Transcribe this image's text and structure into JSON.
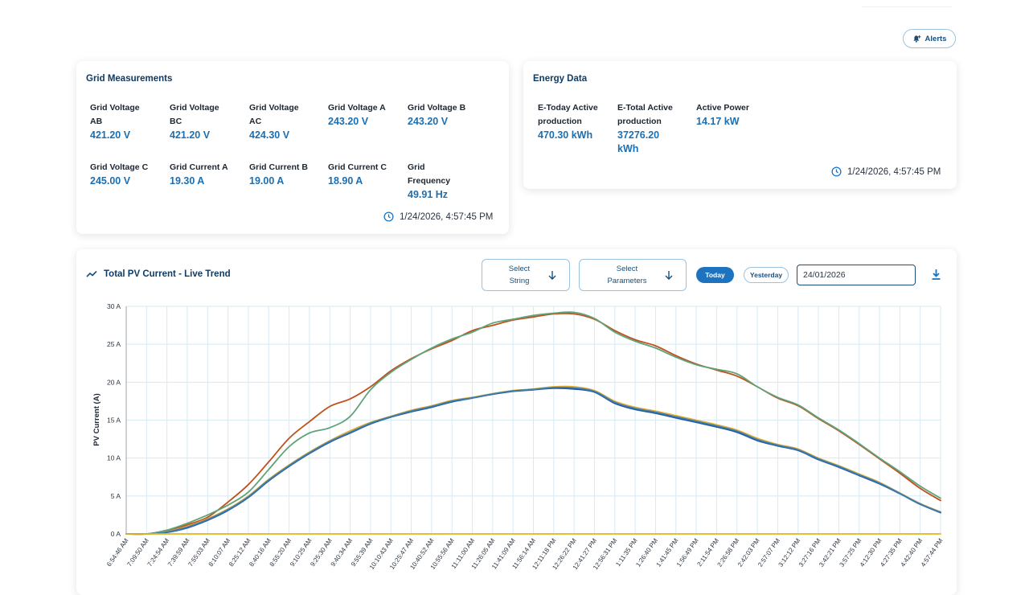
{
  "alerts_label": "Alerts",
  "grid": {
    "title": "Grid Measurements",
    "metrics": [
      {
        "label_lines": [
          "Grid Voltage",
          "AB"
        ],
        "value": "421.20 V"
      },
      {
        "label_lines": [
          "Grid Voltage",
          "BC"
        ],
        "value": "421.20 V"
      },
      {
        "label_lines": [
          "Grid Voltage",
          "AC"
        ],
        "value": "424.30 V"
      },
      {
        "label_lines": [
          "Grid Voltage A"
        ],
        "value": "243.20 V"
      },
      {
        "label_lines": [
          "Grid Voltage B"
        ],
        "value": "243.20 V"
      },
      {
        "label_lines": [
          "Grid Voltage C"
        ],
        "value": "245.00 V"
      },
      {
        "label_lines": [
          "Grid Current A"
        ],
        "value": "19.30 A"
      },
      {
        "label_lines": [
          "Grid Current B"
        ],
        "value": "19.00 A"
      },
      {
        "label_lines": [
          "Grid Current C"
        ],
        "value": "18.90 A"
      },
      {
        "label_lines": [
          "Grid",
          "Frequency"
        ],
        "value": "49.91 Hz"
      }
    ],
    "timestamp": "1/24/2026, 4:57:45 PM"
  },
  "energy": {
    "title": "Energy Data",
    "metrics": [
      {
        "label_lines": [
          "E-Today Active",
          "production"
        ],
        "value_lines": [
          "470.30 kWh"
        ]
      },
      {
        "label_lines": [
          "E-Total Active",
          "production"
        ],
        "value_lines": [
          "37276.20",
          "kWh"
        ]
      },
      {
        "label_lines": [
          "Active Power"
        ],
        "value_lines": [
          "14.17 kW"
        ]
      }
    ],
    "timestamp": "1/24/2026, 4:57:45 PM"
  },
  "trend": {
    "title": "Total PV Current - Live Trend",
    "select_string_lines": [
      "Select",
      "String"
    ],
    "select_parameters_lines": [
      "Select",
      "Parameters"
    ],
    "today_label": "Today",
    "yesterday_label": "Yesterday",
    "date_value": "24/01/2026"
  },
  "colors": {
    "accent": "#1e73be",
    "value_blue": "#1c6fb0",
    "series": [
      "#c0501c",
      "#5fa37a",
      "#e8b23a",
      "#2355a8",
      "#3f7fa8",
      "#e3b51f"
    ]
  },
  "icons": {
    "alerts": "bell-plus-icon",
    "timestamp": "clock-icon",
    "trend": "trend-line-icon",
    "select": "arrow-down-icon",
    "download": "download-icon"
  },
  "chart_data": {
    "type": "line",
    "ylabel": "PV Current (A)",
    "ylim": [
      0,
      30
    ],
    "y_ticks": [
      "0 A",
      "5 A",
      "10 A",
      "15 A",
      "20 A",
      "25 A",
      "30 A"
    ],
    "y_tick_values": [
      0,
      5,
      10,
      15,
      20,
      25,
      30
    ],
    "x_labels": [
      "6:54:46 AM",
      "7:09:50 AM",
      "7:24:54 AM",
      "7:39:59 AM",
      "7:55:03 AM",
      "8:10:07 AM",
      "8:25:12 AM",
      "8:40:16 AM",
      "8:55:20 AM",
      "9:10:25 AM",
      "9:25:30 AM",
      "9:40:34 AM",
      "9:55:39 AM",
      "10:10:43 AM",
      "10:25:47 AM",
      "10:40:52 AM",
      "10:55:56 AM",
      "11:11:00 AM",
      "11:26:05 AM",
      "11:41:09 AM",
      "11:56:14 AM",
      "12:11:18 PM",
      "12:26:22 PM",
      "12:41:27 PM",
      "12:56:31 PM",
      "1:11:35 PM",
      "1:26:40 PM",
      "1:41:45 PM",
      "1:56:49 PM",
      "2:11:54 PM",
      "2:26:58 PM",
      "2:42:03 PM",
      "2:57:07 PM",
      "3:12:12 PM",
      "3:27:16 PM",
      "3:42:21 PM",
      "3:57:25 PM",
      "4:12:30 PM",
      "4:27:35 PM",
      "4:42:40 PM",
      "4:57:44 PM"
    ],
    "grid": true,
    "series": [
      {
        "color": "#c0501c",
        "values": [
          0,
          0,
          0.4,
          1.2,
          2.2,
          4.2,
          6.5,
          9.5,
          12.6,
          14.8,
          16.8,
          17.8,
          19.4,
          21.5,
          23.1,
          24.4,
          25.5,
          26.8,
          27.5,
          28.2,
          28.6,
          29.0,
          29.0,
          28.3,
          26.8,
          25.6,
          24.8,
          23.5,
          22.4,
          21.6,
          20.8,
          19.4,
          17.9,
          16.9,
          15.2,
          13.6,
          11.8,
          9.9,
          8.0,
          6.0,
          4.4
        ]
      },
      {
        "color": "#5fa37a",
        "values": [
          0,
          0,
          0.5,
          1.4,
          2.5,
          3.8,
          5.5,
          8.5,
          11.5,
          13.3,
          14.0,
          15.5,
          19.0,
          21.3,
          23.0,
          24.5,
          25.7,
          26.6,
          27.8,
          28.3,
          28.8,
          29.1,
          29.2,
          28.4,
          26.6,
          25.4,
          24.5,
          23.3,
          22.3,
          21.7,
          21.1,
          19.4,
          18.0,
          17.0,
          15.3,
          13.7,
          11.9,
          10.0,
          8.2,
          6.3,
          4.7
        ]
      },
      {
        "color": "#e8b23a",
        "values": [
          0,
          0,
          0.3,
          1.0,
          2.0,
          3.3,
          5.0,
          7.2,
          9.1,
          10.8,
          12.3,
          13.6,
          14.7,
          15.5,
          16.3,
          16.9,
          17.6,
          18.0,
          18.5,
          18.9,
          19.1,
          19.4,
          19.4,
          18.9,
          17.5,
          16.7,
          16.2,
          15.6,
          15.0,
          14.4,
          13.7,
          12.6,
          11.8,
          11.2,
          10.0,
          9.0,
          7.9,
          6.8,
          5.4,
          4.0,
          2.9
        ]
      },
      {
        "color": "#2355a8",
        "values": [
          0,
          0,
          0.2,
          0.8,
          1.8,
          3.1,
          4.8,
          7.0,
          8.9,
          10.6,
          12.1,
          13.3,
          14.5,
          15.4,
          16.1,
          16.7,
          17.4,
          17.9,
          18.4,
          18.8,
          19.0,
          19.2,
          19.1,
          18.7,
          17.2,
          16.4,
          15.9,
          15.3,
          14.7,
          14.1,
          13.4,
          12.3,
          11.6,
          11.0,
          9.8,
          8.8,
          7.7,
          6.6,
          5.3,
          3.9,
          2.8
        ]
      },
      {
        "color": "#3f7fa8",
        "values": [
          0,
          0,
          0.25,
          0.9,
          1.9,
          3.2,
          4.9,
          7.1,
          9.0,
          10.7,
          12.2,
          13.4,
          14.6,
          15.45,
          16.2,
          16.8,
          17.5,
          17.95,
          18.45,
          18.85,
          19.05,
          19.3,
          19.25,
          18.8,
          17.35,
          16.55,
          16.05,
          15.45,
          14.85,
          14.25,
          13.55,
          12.45,
          11.7,
          11.1,
          9.9,
          8.9,
          7.8,
          6.7,
          5.35,
          3.95,
          2.85
        ]
      },
      {
        "color": "#e3b51f",
        "values": [
          0,
          0,
          0,
          0,
          0,
          0,
          0,
          0,
          0,
          0,
          0,
          0,
          0,
          0,
          0,
          0,
          0,
          0,
          0,
          0,
          0,
          0,
          0,
          0,
          0,
          0,
          0,
          0,
          0,
          0,
          0,
          0,
          0,
          0,
          0,
          0,
          0,
          0,
          0,
          0,
          0
        ]
      }
    ]
  }
}
